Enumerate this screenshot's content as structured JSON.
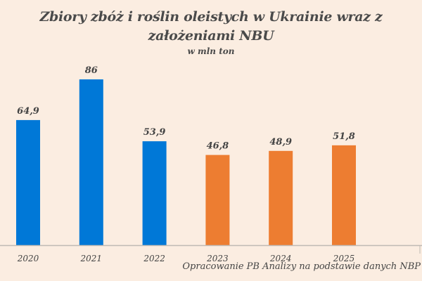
{
  "chart_data": {
    "type": "bar",
    "title": "Zbiory zbóż i roślin oleistych w Ukrainie wraz z założeniami NBU",
    "subtitle": "w mln ton",
    "categories": [
      "2020",
      "2021",
      "2022",
      "2023",
      "2024",
      "2025"
    ],
    "values": [
      64.9,
      86,
      53.9,
      46.8,
      48.9,
      51.8
    ],
    "data_labels": [
      "64,9",
      "86",
      "53,9",
      "46,8",
      "48,9",
      "51,8"
    ],
    "bar_colors": [
      "#0078d7",
      "#0078d7",
      "#0078d7",
      "#ed7d31",
      "#ed7d31",
      "#ed7d31"
    ],
    "ylim": [
      0,
      86
    ],
    "grid": false,
    "legend": "none",
    "xlabel": "",
    "ylabel": "",
    "source": "Opracowanie PB Analizy na podstawie danych NBP"
  }
}
